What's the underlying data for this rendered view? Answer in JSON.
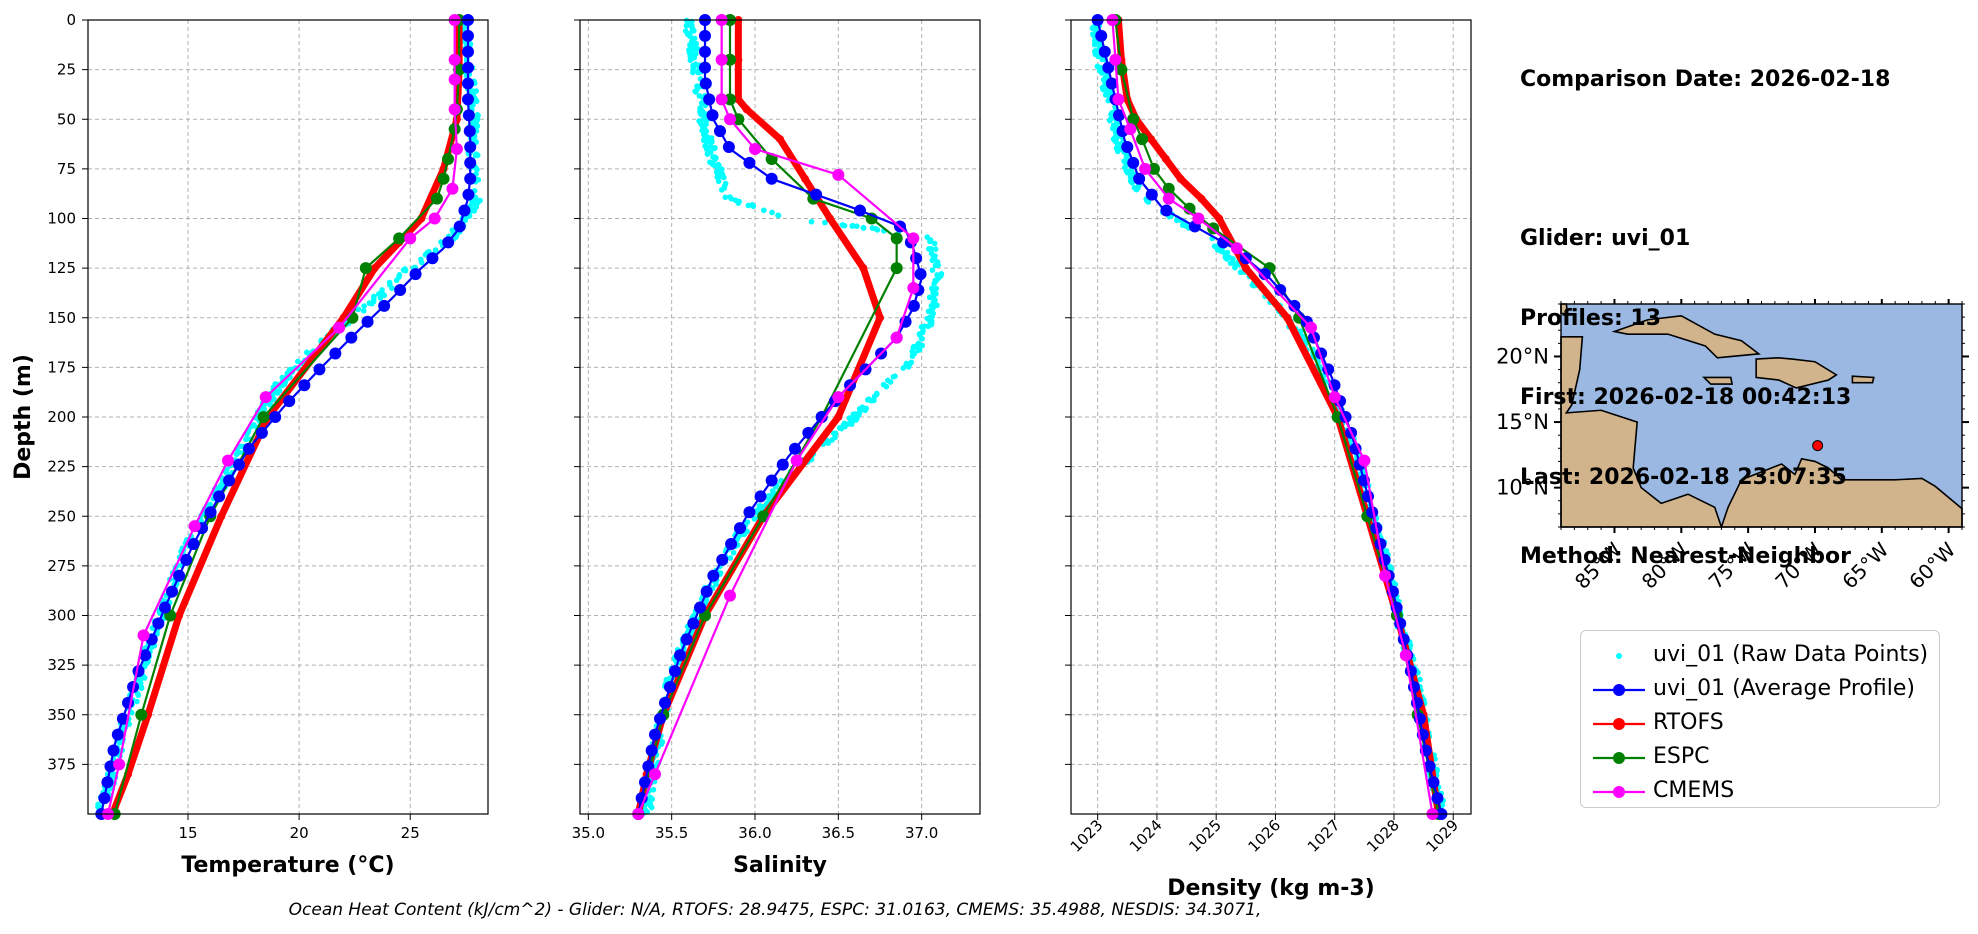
{
  "info": {
    "comparison_date": "Comparison Date: 2026-02-18",
    "glider": "Glider: uvi_01",
    "profiles": "Profiles: 13",
    "first": "First: 2026-02-18 00:42:13",
    "last": "Last: 2026-02-18 23:07:35",
    "method": "Method: Nearest-Neighbor"
  },
  "footer": "Ocean Heat Content (kJ/cm^2) - Glider: N/A,  RTOFS: 28.9475,  ESPC: 31.0163,  CMEMS: 35.4988,  NESDIS: 34.3071,",
  "colors": {
    "raw": "#00ffff",
    "avg": "#0000ff",
    "rtofs": "#ff0000",
    "espc": "#008000",
    "cmems": "#ff00ff",
    "ocean": "#9ab8e2",
    "land": "#d2b48c"
  },
  "legend": [
    {
      "key": "raw",
      "label": "uvi_01 (Raw Data Points)"
    },
    {
      "key": "avg",
      "label": "uvi_01 (Average Profile)"
    },
    {
      "key": "rtofs",
      "label": "RTOFS"
    },
    {
      "key": "espc",
      "label": "ESPC"
    },
    {
      "key": "cmems",
      "label": "CMEMS"
    }
  ],
  "map": {
    "lon_ticks": [
      "85°W",
      "80°W",
      "75°W",
      "70°W",
      "65°W",
      "60°W"
    ],
    "lat_ticks": [
      "20°N",
      "15°N",
      "10°N"
    ],
    "lon_range": [
      -89,
      -59
    ],
    "lat_range": [
      7,
      24
    ],
    "glider_position": {
      "lon": -69.8,
      "lat": 13.2
    }
  },
  "chart_data": [
    {
      "type": "line",
      "xlabel": "Temperature (°C)",
      "ylabel": "Depth (m)",
      "xlim": [
        10.5,
        28.5
      ],
      "ylim": [
        400,
        0
      ],
      "xticks": [
        15,
        20,
        25
      ],
      "yticks": [
        0,
        25,
        50,
        75,
        100,
        125,
        150,
        175,
        200,
        225,
        250,
        275,
        300,
        325,
        350,
        375
      ],
      "grid": true,
      "series": [
        {
          "name": "uvi_01 (Average Profile)",
          "key": "avg",
          "x": [
            27.6,
            27.6,
            27.6,
            27.7,
            27.7,
            27.6,
            27.2,
            26.5,
            25.5,
            24.2,
            22.8,
            21.0,
            19.3,
            17.8,
            16.4,
            15.2,
            14.0,
            12.7,
            11.7,
            11.1
          ],
          "y": [
            0,
            20,
            40,
            60,
            80,
            90,
            105,
            115,
            125,
            140,
            155,
            175,
            195,
            215,
            240,
            265,
            295,
            330,
            365,
            400
          ]
        },
        {
          "name": "RTOFS",
          "key": "rtofs",
          "x": [
            27.2,
            27.2,
            27.1,
            26.5,
            25.5,
            24.5,
            23.4,
            22.0,
            18.6,
            16.5,
            14.6,
            13.2,
            12.3,
            11.6
          ],
          "y": [
            0,
            25,
            50,
            75,
            100,
            112,
            125,
            150,
            200,
            250,
            300,
            350,
            380,
            400
          ]
        },
        {
          "name": "ESPC",
          "key": "espc",
          "x": [
            27.2,
            27.2,
            27.1,
            27.0,
            26.7,
            26.5,
            26.2,
            24.5,
            23.0,
            22.4,
            18.4,
            16.0,
            14.2,
            12.9,
            11.7
          ],
          "y": [
            0,
            25,
            45,
            55,
            70,
            80,
            90,
            110,
            125,
            150,
            200,
            250,
            300,
            350,
            400
          ]
        },
        {
          "name": "CMEMS",
          "key": "cmems",
          "x": [
            27.0,
            27.0,
            27.0,
            27.0,
            27.1,
            26.9,
            26.1,
            25.0,
            21.8,
            18.5,
            16.8,
            15.3,
            13.0,
            11.9,
            11.4
          ],
          "y": [
            0,
            20,
            30,
            45,
            65,
            85,
            100,
            110,
            155,
            190,
            222,
            255,
            310,
            375,
            400
          ]
        }
      ],
      "raw": {
        "x": [
          27.4,
          27.6,
          27.9,
          27.8,
          28.0,
          27.5,
          26.8,
          25.0,
          23.5,
          21.8,
          20.3,
          19.0,
          18.2,
          17.2,
          16.0,
          15.0,
          14.1,
          13.3,
          12.6,
          12.0,
          11.5,
          11.0
        ],
        "y": [
          0,
          20,
          50,
          75,
          90,
          100,
          110,
          125,
          140,
          155,
          170,
          185,
          200,
          220,
          245,
          265,
          290,
          315,
          340,
          360,
          385,
          400
        ]
      }
    },
    {
      "type": "line",
      "xlabel": "Salinity",
      "ylabel": "",
      "xlim": [
        34.95,
        37.35
      ],
      "ylim": [
        400,
        0
      ],
      "xticks": [
        35.0,
        35.5,
        36.0,
        36.5,
        37.0
      ],
      "grid": true,
      "series": [
        {
          "name": "uvi_01 (Average Profile)",
          "key": "avg",
          "x": [
            35.7,
            35.7,
            35.75,
            35.85,
            36.1,
            36.6,
            36.9,
            36.95,
            37.0,
            36.95,
            36.85,
            36.5,
            36.2,
            35.95,
            35.75,
            35.55,
            35.4,
            35.3
          ],
          "y": [
            0,
            30,
            50,
            65,
            80,
            95,
            105,
            115,
            130,
            145,
            160,
            190,
            220,
            250,
            280,
            320,
            360,
            400
          ]
        },
        {
          "name": "RTOFS",
          "key": "rtofs",
          "x": [
            35.9,
            35.9,
            35.9,
            35.95,
            36.15,
            36.3,
            36.45,
            36.65,
            36.75,
            36.5,
            36.05,
            35.7,
            35.45,
            35.35,
            35.3
          ],
          "y": [
            0,
            20,
            40,
            45,
            60,
            80,
            100,
            125,
            150,
            200,
            250,
            300,
            350,
            380,
            400
          ]
        },
        {
          "name": "ESPC",
          "key": "espc",
          "x": [
            35.85,
            35.85,
            35.85,
            35.9,
            36.1,
            36.35,
            36.7,
            36.85,
            36.85,
            36.4,
            36.05,
            35.7,
            35.45,
            35.3
          ],
          "y": [
            0,
            20,
            40,
            50,
            70,
            90,
            100,
            110,
            125,
            200,
            250,
            300,
            350,
            400
          ]
        },
        {
          "name": "CMEMS",
          "key": "cmems",
          "x": [
            35.8,
            35.8,
            35.8,
            35.85,
            36.0,
            36.5,
            36.95,
            36.95,
            36.85,
            36.5,
            36.25,
            35.85,
            35.4,
            35.3
          ],
          "y": [
            0,
            20,
            40,
            50,
            65,
            78,
            110,
            135,
            160,
            190,
            222,
            290,
            380,
            400
          ]
        }
      ],
      "raw": {
        "x": [
          35.6,
          35.65,
          35.7,
          35.75,
          35.85,
          36.2,
          36.7,
          37.05,
          37.1,
          37.05,
          36.95,
          36.6,
          36.2,
          35.9,
          35.7,
          35.5,
          35.4,
          35.35
        ],
        "y": [
          0,
          25,
          55,
          70,
          90,
          100,
          105,
          110,
          130,
          150,
          170,
          200,
          230,
          260,
          290,
          330,
          370,
          400
        ]
      }
    },
    {
      "type": "line",
      "xlabel": "Density (kg m-3)",
      "ylabel": "",
      "xlim": [
        1022.55,
        1029.3
      ],
      "ylim": [
        400,
        0
      ],
      "xticks": [
        1023,
        1024,
        1025,
        1026,
        1027,
        1028,
        1029
      ],
      "grid": true,
      "series": [
        {
          "name": "uvi_01 (Average Profile)",
          "key": "avg",
          "x": [
            1023.0,
            1023.15,
            1023.3,
            1023.45,
            1023.7,
            1024.1,
            1024.7,
            1025.3,
            1025.9,
            1026.5,
            1026.95,
            1027.3,
            1027.65,
            1028.0,
            1028.3,
            1028.55,
            1028.8
          ],
          "y": [
            0,
            20,
            40,
            60,
            80,
            95,
            105,
            115,
            130,
            150,
            180,
            210,
            250,
            290,
            330,
            370,
            400
          ]
        },
        {
          "name": "RTOFS",
          "key": "rtofs",
          "x": [
            1023.35,
            1023.4,
            1023.5,
            1023.65,
            1023.9,
            1024.15,
            1024.4,
            1024.75,
            1025.05,
            1025.5,
            1026.2,
            1027.05,
            1027.55,
            1028.05,
            1028.5,
            1028.75
          ],
          "y": [
            0,
            20,
            40,
            50,
            60,
            70,
            80,
            90,
            100,
            125,
            150,
            200,
            250,
            300,
            350,
            400
          ]
        },
        {
          "name": "ESPC",
          "key": "espc",
          "x": [
            1023.3,
            1023.4,
            1023.6,
            1023.75,
            1023.95,
            1024.2,
            1024.55,
            1024.95,
            1025.9,
            1026.4,
            1027.05,
            1027.55,
            1028.05,
            1028.4,
            1028.75
          ],
          "y": [
            0,
            25,
            50,
            60,
            75,
            85,
            95,
            105,
            125,
            150,
            200,
            250,
            300,
            350,
            400
          ]
        },
        {
          "name": "CMEMS",
          "key": "cmems",
          "x": [
            1023.25,
            1023.3,
            1023.35,
            1023.55,
            1023.8,
            1024.2,
            1024.7,
            1025.35,
            1026.6,
            1027.0,
            1027.5,
            1027.85,
            1028.2,
            1028.65
          ],
          "y": [
            0,
            20,
            40,
            55,
            75,
            90,
            100,
            115,
            155,
            190,
            222,
            280,
            320,
            400
          ]
        }
      ],
      "raw": {
        "x": [
          1022.95,
          1023.05,
          1023.2,
          1023.35,
          1023.5,
          1023.8,
          1024.3,
          1024.9,
          1025.4,
          1025.9,
          1026.45,
          1026.9,
          1027.3,
          1027.65,
          1028.0,
          1028.35,
          1028.6,
          1028.8
        ],
        "y": [
          0,
          20,
          40,
          60,
          75,
          90,
          100,
          110,
          125,
          140,
          160,
          185,
          215,
          250,
          290,
          330,
          370,
          400
        ]
      }
    }
  ]
}
